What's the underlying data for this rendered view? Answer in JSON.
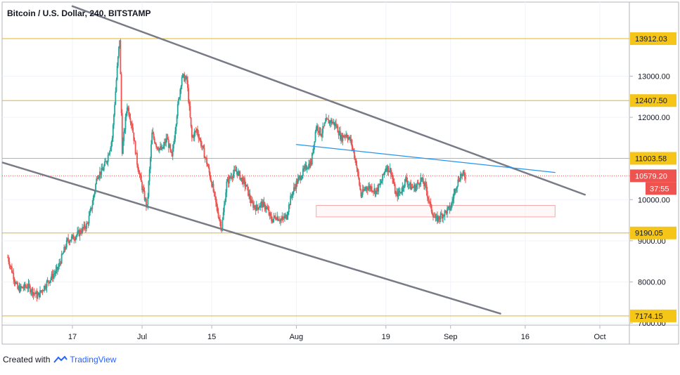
{
  "header": {
    "symbol_title": "Bitcoin / U.S. Dollar, 240, BITSTAMP"
  },
  "footer": {
    "created_with": "Created with",
    "brand": "TradingView"
  },
  "colors": {
    "up_candle": "#26a69a",
    "down_candle": "#ef5350",
    "horizontal_level": "#e6b422",
    "channel_line": "#787b86",
    "trend_line": "#2196f3",
    "price_tag": "#ef5350",
    "level_tag": "#f5c518",
    "zone_border": "#f7a8a8"
  },
  "chart_data": {
    "type": "candlestick",
    "title": "Bitcoin / U.S. Dollar, 240, BITSTAMP",
    "x_ticks": [
      "17",
      "Jul",
      "15",
      "Aug",
      "19",
      "Sep",
      "16",
      "Oct"
    ],
    "x_tick_dates": [
      "2019-06-17",
      "2019-07-01",
      "2019-07-15",
      "2019-08-01",
      "2019-08-19",
      "2019-09-01",
      "2019-09-16",
      "2019-10-01"
    ],
    "y_ticks": [
      7000,
      8000,
      9000,
      10000,
      11000,
      12000,
      13000
    ],
    "y_tick_labels": [
      "7000.00",
      "8000.00",
      "9000.00",
      "10000.00",
      "11000.00",
      "12000.00",
      "13000.00"
    ],
    "ylim": [
      6950,
      14800
    ],
    "levels": [
      {
        "value": 13912.03,
        "label": "13912.03"
      },
      {
        "value": 12407.5,
        "label": "12407.50"
      },
      {
        "value": 11003.58,
        "label": "11003.58"
      },
      {
        "value": 9190.05,
        "label": "9190.05"
      },
      {
        "value": 7174.15,
        "label": "7174.15"
      }
    ],
    "current_price": {
      "value": 10579.2,
      "label": "10579.20",
      "countdown": "37:55"
    },
    "channel_upper": [
      {
        "date": "2019-06-17",
        "value": 14700
      },
      {
        "date": "2019-09-28",
        "value": 10120
      }
    ],
    "channel_lower": [
      {
        "date": "2019-06-03",
        "value": 10900
      },
      {
        "date": "2019-09-11",
        "value": 7230
      }
    ],
    "blue_trendline": [
      {
        "date": "2019-08-01",
        "value": 11340
      },
      {
        "date": "2019-09-22",
        "value": 10660
      }
    ],
    "support_zone": {
      "date_start": "2019-08-05",
      "date_end": "2019-09-22",
      "high": 9860,
      "low": 9580
    },
    "prices": [
      [
        "2019-06-04",
        8600
      ],
      [
        "2019-06-06",
        7820
      ],
      [
        "2019-06-08",
        7900
      ],
      [
        "2019-06-10",
        7650
      ],
      [
        "2019-06-12",
        8000
      ],
      [
        "2019-06-14",
        8300
      ],
      [
        "2019-06-16",
        9000
      ],
      [
        "2019-06-18",
        9150
      ],
      [
        "2019-06-20",
        9400
      ],
      [
        "2019-06-21",
        9900
      ],
      [
        "2019-06-22",
        10600
      ],
      [
        "2019-06-23",
        10700
      ],
      [
        "2019-06-24",
        11000
      ],
      [
        "2019-06-25",
        11500
      ],
      [
        "2019-06-26",
        13200
      ],
      [
        "2019-06-26T12:00",
        13912
      ],
      [
        "2019-06-27",
        11200
      ],
      [
        "2019-06-28",
        12300
      ],
      [
        "2019-06-29",
        11800
      ],
      [
        "2019-06-30",
        10900
      ],
      [
        "2019-07-01",
        10300
      ],
      [
        "2019-07-02",
        9800
      ],
      [
        "2019-07-03",
        11600
      ],
      [
        "2019-07-04",
        11300
      ],
      [
        "2019-07-05",
        11200
      ],
      [
        "2019-07-06",
        11500
      ],
      [
        "2019-07-07",
        11000
      ],
      [
        "2019-07-08",
        12100
      ],
      [
        "2019-07-09",
        13000
      ],
      [
        "2019-07-10",
        12900
      ],
      [
        "2019-07-11",
        11500
      ],
      [
        "2019-07-12",
        11700
      ],
      [
        "2019-07-13",
        11300
      ],
      [
        "2019-07-14",
        10900
      ],
      [
        "2019-07-15",
        10400
      ],
      [
        "2019-07-16",
        9800
      ],
      [
        "2019-07-17",
        9300
      ],
      [
        "2019-07-18",
        10400
      ],
      [
        "2019-07-19",
        10600
      ],
      [
        "2019-07-20",
        10700
      ],
      [
        "2019-07-21",
        10500
      ],
      [
        "2019-07-22",
        10300
      ],
      [
        "2019-07-23",
        9900
      ],
      [
        "2019-07-24",
        9800
      ],
      [
        "2019-07-25",
        9900
      ],
      [
        "2019-07-26",
        9800
      ],
      [
        "2019-07-27",
        9500
      ],
      [
        "2019-07-28",
        9600
      ],
      [
        "2019-07-29",
        9500
      ],
      [
        "2019-07-30",
        9600
      ],
      [
        "2019-07-31",
        10100
      ],
      [
        "2019-08-01",
        10400
      ],
      [
        "2019-08-02",
        10600
      ],
      [
        "2019-08-03",
        10800
      ],
      [
        "2019-08-04",
        10900
      ],
      [
        "2019-08-05",
        11800
      ],
      [
        "2019-08-06",
        11600
      ],
      [
        "2019-08-07",
        11900
      ],
      [
        "2019-08-08",
        11900
      ],
      [
        "2019-08-09",
        11800
      ],
      [
        "2019-08-10",
        11500
      ],
      [
        "2019-08-11",
        11600
      ],
      [
        "2019-08-12",
        11400
      ],
      [
        "2019-08-13",
        10900
      ],
      [
        "2019-08-14",
        10100
      ],
      [
        "2019-08-15",
        10300
      ],
      [
        "2019-08-16",
        10300
      ],
      [
        "2019-08-17",
        10200
      ],
      [
        "2019-08-18",
        10400
      ],
      [
        "2019-08-19",
        10800
      ],
      [
        "2019-08-20",
        10700
      ],
      [
        "2019-08-21",
        10100
      ],
      [
        "2019-08-22",
        10200
      ],
      [
        "2019-08-23",
        10500
      ],
      [
        "2019-08-24",
        10300
      ],
      [
        "2019-08-25",
        10300
      ],
      [
        "2019-08-26",
        10500
      ],
      [
        "2019-08-27",
        10300
      ],
      [
        "2019-08-28",
        9800
      ],
      [
        "2019-08-29",
        9500
      ],
      [
        "2019-08-30",
        9600
      ],
      [
        "2019-08-31",
        9700
      ],
      [
        "2019-09-01",
        9800
      ],
      [
        "2019-09-02",
        10300
      ],
      [
        "2019-09-03",
        10600
      ],
      [
        "2019-09-04",
        10579.2
      ]
    ]
  }
}
